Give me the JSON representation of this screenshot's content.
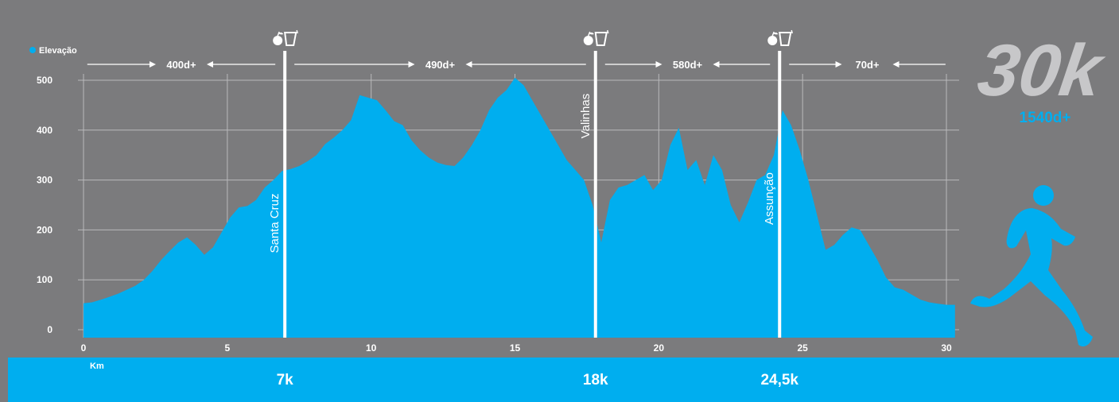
{
  "colors": {
    "background": "#7b7b7d",
    "area": "#00aeef",
    "band": "#00aeef",
    "text": "#ffffff",
    "grid": "#b9b9bb",
    "logo": "#c7c7c9"
  },
  "legend": {
    "label": "Elevação"
  },
  "badge": {
    "distance": "30k",
    "climb": "1540d+"
  },
  "runner_icon": "runner-silhouette-icon",
  "station_icon": "apple-and-cup-icon",
  "chart_data": {
    "type": "area",
    "series": [
      {
        "name": "Elevação",
        "x": [
          0,
          0.3,
          0.6,
          0.9,
          1.2,
          1.5,
          1.8,
          2.1,
          2.4,
          2.7,
          3.0,
          3.3,
          3.6,
          3.9,
          4.2,
          4.5,
          4.8,
          5.1,
          5.4,
          5.7,
          6.0,
          6.3,
          6.6,
          6.9,
          7.2,
          7.5,
          7.8,
          8.1,
          8.4,
          8.7,
          9.0,
          9.3,
          9.6,
          9.9,
          10.2,
          10.5,
          10.8,
          11.1,
          11.4,
          11.7,
          12.0,
          12.3,
          12.6,
          12.9,
          13.2,
          13.5,
          13.8,
          14.1,
          14.4,
          14.7,
          15.0,
          15.3,
          15.6,
          15.9,
          16.2,
          16.5,
          16.8,
          17.1,
          17.4,
          17.7,
          18.0,
          18.3,
          18.6,
          18.9,
          19.2,
          19.5,
          19.8,
          20.1,
          20.4,
          20.7,
          21.0,
          21.3,
          21.6,
          21.9,
          22.2,
          22.5,
          22.8,
          23.1,
          23.4,
          23.7,
          24.0,
          24.3,
          24.6,
          24.9,
          25.2,
          25.5,
          25.8,
          26.1,
          26.4,
          26.7,
          27.0,
          27.3,
          27.6,
          27.9,
          28.2,
          28.5,
          28.8,
          29.1,
          29.4,
          29.7,
          30.0,
          30.3
        ],
        "y": [
          53,
          55,
          60,
          66,
          72,
          80,
          88,
          100,
          118,
          140,
          158,
          175,
          185,
          170,
          150,
          165,
          195,
          225,
          245,
          248,
          260,
          285,
          300,
          318,
          322,
          328,
          338,
          350,
          372,
          385,
          400,
          420,
          470,
          465,
          460,
          440,
          418,
          410,
          380,
          360,
          345,
          335,
          330,
          328,
          345,
          370,
          400,
          440,
          465,
          480,
          505,
          490,
          460,
          430,
          400,
          370,
          340,
          320,
          300,
          250,
          175,
          260,
          285,
          290,
          300,
          310,
          280,
          300,
          370,
          405,
          320,
          340,
          290,
          350,
          320,
          250,
          215,
          255,
          300,
          310,
          350,
          440,
          410,
          360,
          300,
          230,
          160,
          170,
          190,
          205,
          200,
          170,
          140,
          105,
          85,
          80,
          70,
          60,
          55,
          52,
          50,
          50
        ]
      }
    ],
    "xlim": [
      0,
      30.3
    ],
    "ylim": [
      0,
      500
    ],
    "x_ticks": [
      0,
      5,
      10,
      15,
      20,
      25,
      30
    ],
    "y_ticks": [
      0,
      100,
      200,
      300,
      400,
      500
    ],
    "x_tick_labels": [
      "0",
      "5",
      "10",
      "15",
      "20",
      "25",
      "30"
    ],
    "y_tick_labels": [
      "0",
      "100",
      "200",
      "300",
      "400",
      "500"
    ],
    "xlabel": "Km",
    "ylabel": "",
    "grid": true,
    "legend_position": "top-left",
    "markers": [
      {
        "km": 7,
        "name": "Santa Cruz",
        "distance_label": "7k"
      },
      {
        "km": 17.8,
        "name": "Valinhas",
        "distance_label": "18k"
      },
      {
        "km": 24.2,
        "name": "Assunção",
        "distance_label": "24,5k"
      }
    ],
    "segments": [
      {
        "from": -0.2,
        "to": 7,
        "label": "400d+"
      },
      {
        "from": 7,
        "to": 17.8,
        "label": "490d+"
      },
      {
        "from": 17.8,
        "to": 24.2,
        "label": "580d+"
      },
      {
        "from": 24.2,
        "to": 30.3,
        "label": "70d+"
      }
    ]
  }
}
